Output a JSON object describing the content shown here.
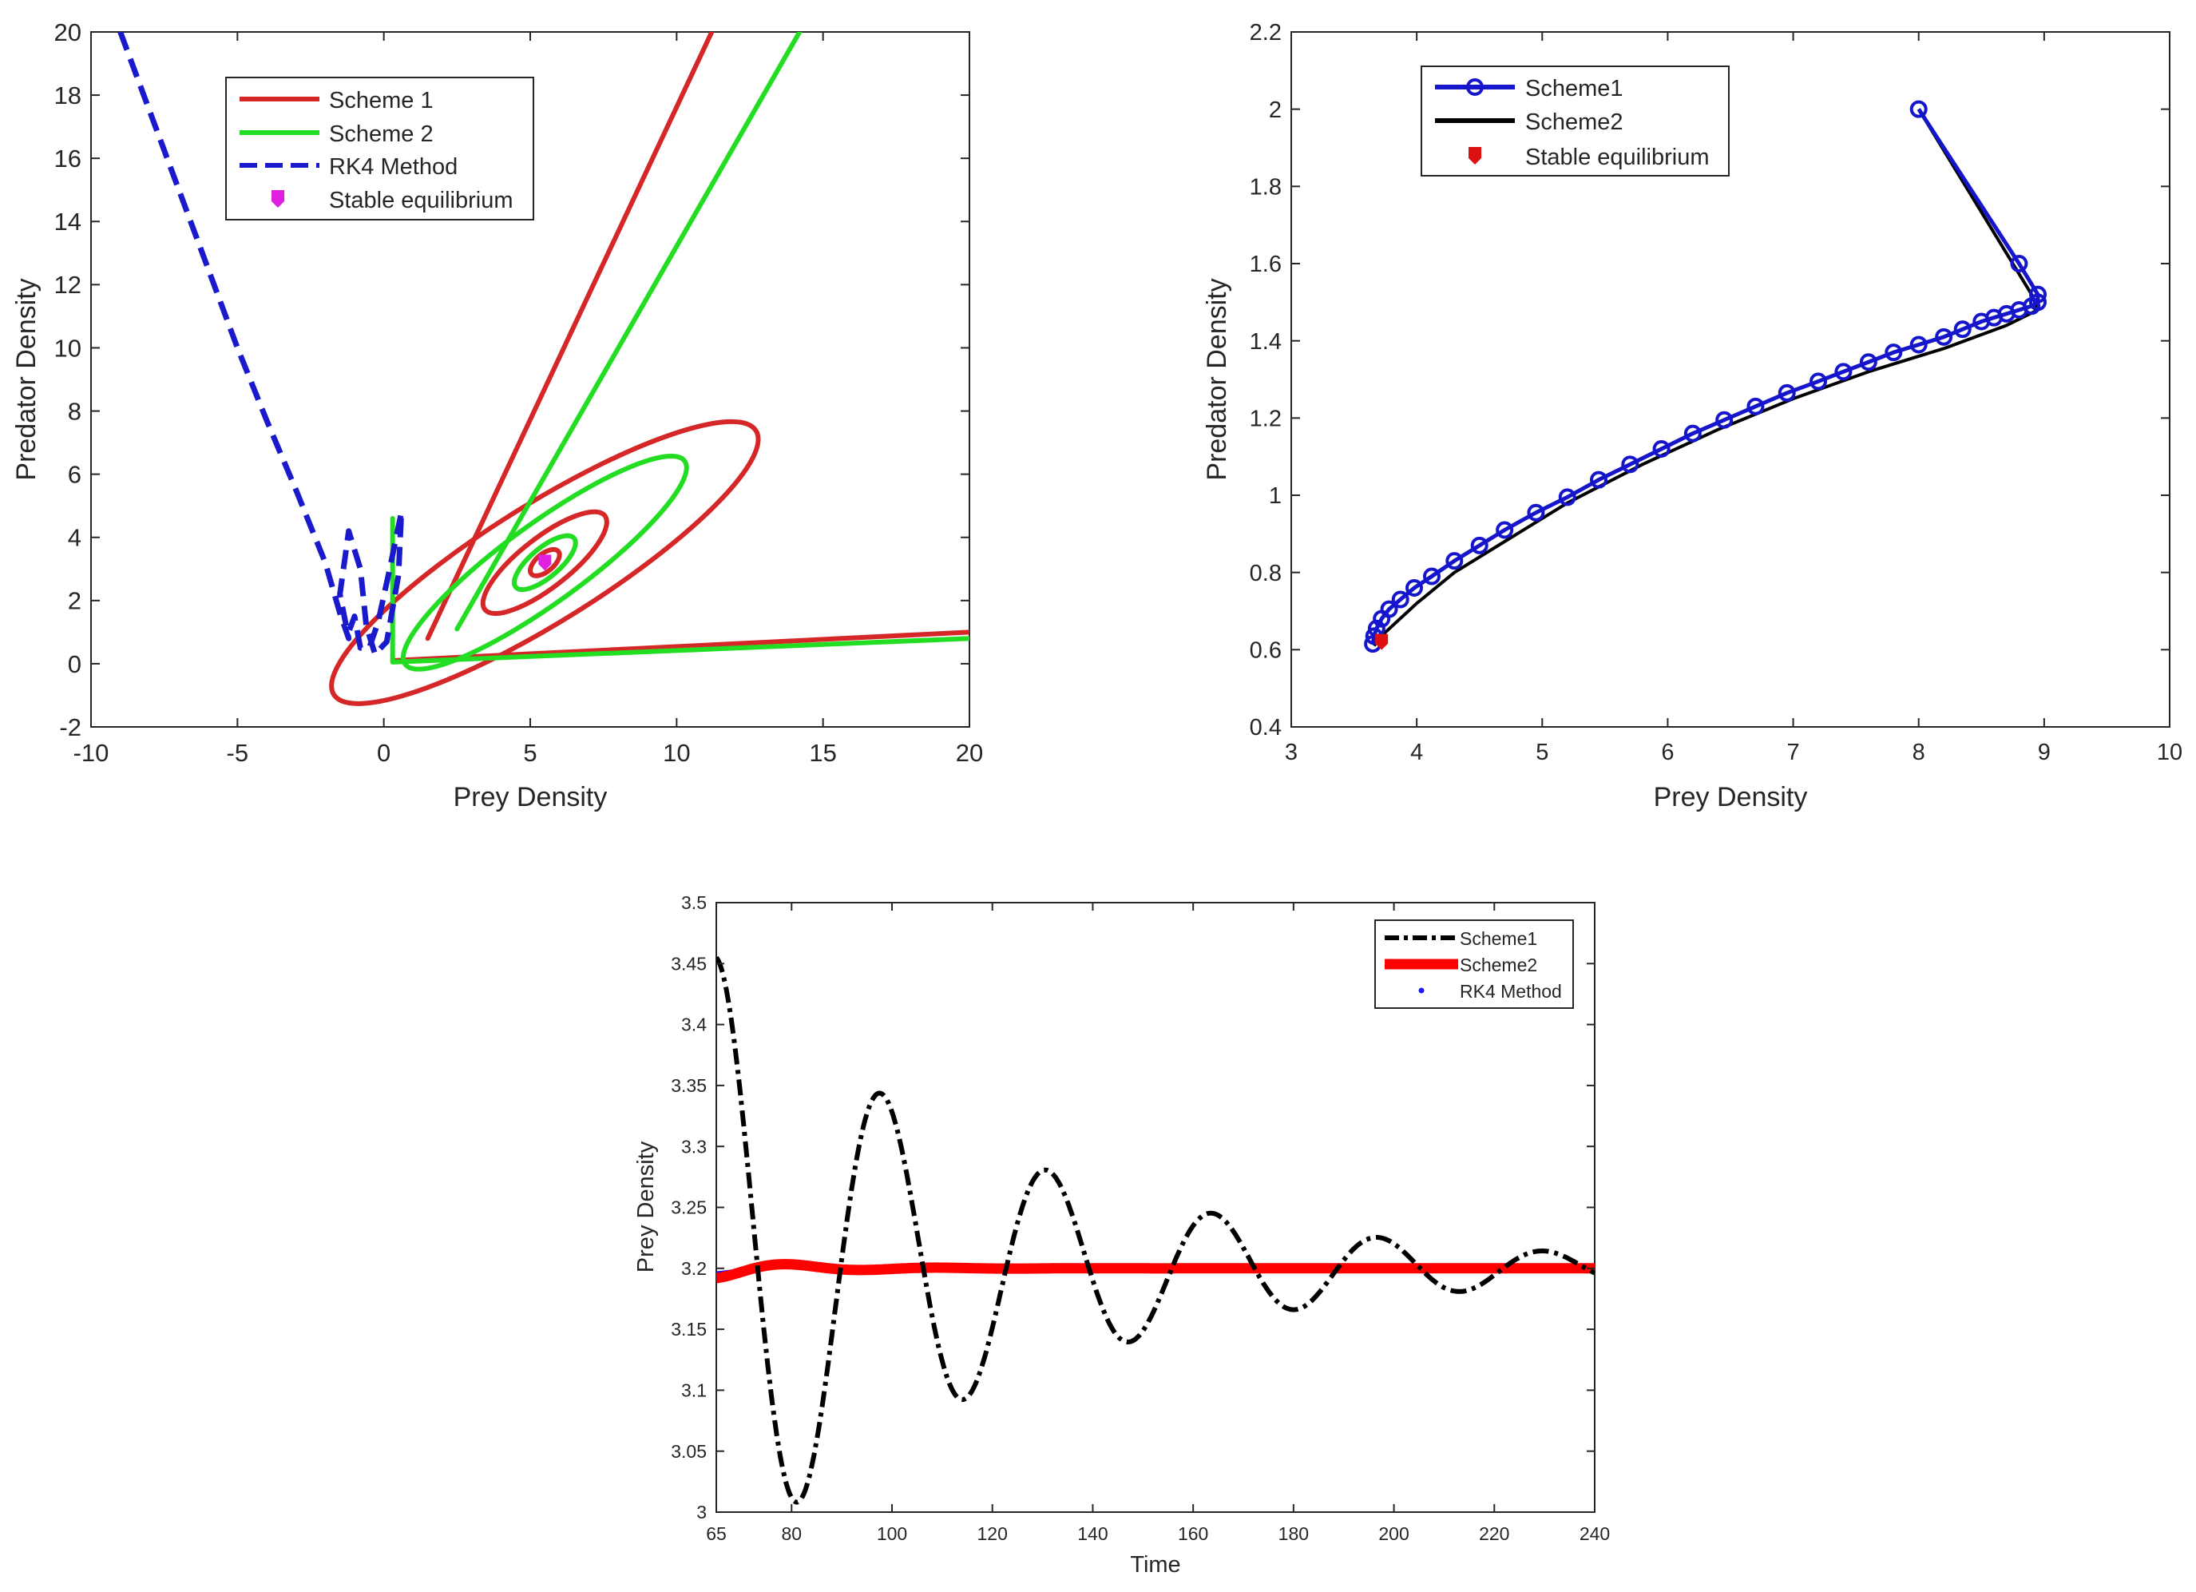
{
  "chart_data": [
    {
      "type": "line",
      "id": "phase-portrait-1",
      "xlabel": "Prey Density",
      "ylabel": "Predator Density",
      "xlim": [
        -10,
        20
      ],
      "ylim": [
        -2,
        20
      ],
      "xticks": [
        -10,
        -5,
        0,
        5,
        10,
        15,
        20
      ],
      "yticks": [
        -2,
        0,
        2,
        4,
        6,
        8,
        10,
        12,
        14,
        16,
        18,
        20
      ],
      "legend_position": "top-left",
      "equilibrium": {
        "x": 5.5,
        "y": 3.2
      },
      "series": [
        {
          "name": "Scheme 1",
          "color": "#d62728",
          "style": "solid",
          "segments": [
            {
              "kind": "ray",
              "x": [
                1.5,
                11.2
              ],
              "y": [
                0.8,
                20
              ]
            },
            {
              "kind": "ray",
              "x": [
                0.3,
                20
              ],
              "y": [
                0.1,
                1.0
              ]
            },
            {
              "kind": "ellipse",
              "rx": 8.5,
              "ry": 2.0,
              "angle": 32
            },
            {
              "kind": "ellipse",
              "rx": 2.6,
              "ry": 0.85,
              "angle": 38
            },
            {
              "kind": "ellipse",
              "rx": 0.6,
              "ry": 0.3,
              "angle": 40
            }
          ]
        },
        {
          "name": "Scheme 2",
          "color": "#22dd22",
          "style": "solid",
          "segments": [
            {
              "kind": "ray",
              "x": [
                2.5,
                14.2
              ],
              "y": [
                1.1,
                20
              ]
            },
            {
              "kind": "ray",
              "x": [
                0.3,
                20
              ],
              "y": [
                0.05,
                0.8
              ]
            },
            {
              "kind": "ellipse",
              "rx": 5.9,
              "ry": 1.35,
              "angle": 36
            },
            {
              "kind": "ellipse",
              "rx": 1.3,
              "ry": 0.5,
              "angle": 40
            },
            {
              "kind": "vertical",
              "x": [
                0.3,
                0.3
              ],
              "y": [
                0.1,
                4.6
              ]
            }
          ]
        },
        {
          "name": "RK4 Method",
          "color": "#1a1acc",
          "style": "dashed",
          "x": [
            -9,
            -8,
            -7,
            -6,
            -5,
            -4,
            -3,
            -2,
            -1.5,
            -1.2,
            -1.5,
            -1.2,
            -0.8,
            -0.6,
            -0.3,
            0.1,
            0.5,
            0.6,
            0.2,
            -0.2,
            -0.5,
            -0.8,
            -1.0,
            -1.2
          ],
          "y": [
            20,
            17.5,
            15,
            12.5,
            10,
            7.7,
            5.5,
            3.2,
            1.6,
            0.8,
            2.2,
            4.2,
            3.0,
            1.2,
            0.3,
            0.7,
            2.8,
            4.8,
            3.0,
            1.3,
            0.5,
            0.5,
            1.5,
            1.0
          ]
        }
      ],
      "legend": [
        "Scheme 1",
        "Scheme 2",
        "RK4 Method",
        "Stable equilibrium"
      ]
    },
    {
      "type": "line",
      "id": "phase-portrait-2",
      "xlabel": "Prey Density",
      "ylabel": "Predator Density",
      "xlim": [
        3,
        10
      ],
      "ylim": [
        0.4,
        2.2
      ],
      "xticks": [
        3,
        4,
        5,
        6,
        7,
        8,
        9,
        10
      ],
      "yticks": [
        0.4,
        0.6,
        0.8,
        1,
        1.2,
        1.4,
        1.6,
        1.8,
        2,
        2.2
      ],
      "legend_position": "top-left",
      "equilibrium": {
        "x": 3.72,
        "y": 0.62
      },
      "series": [
        {
          "name": "Scheme1",
          "color": "#1515cc",
          "marker": "circle",
          "x": [
            8.0,
            8.8,
            8.95,
            8.95,
            8.9,
            8.8,
            8.7,
            8.6,
            8.5,
            8.35,
            8.2,
            8.0,
            7.8,
            7.6,
            7.4,
            7.2,
            6.95,
            6.7,
            6.45,
            6.2,
            5.95,
            5.7,
            5.45,
            5.2,
            4.95,
            4.7,
            4.5,
            4.3,
            4.12,
            3.98,
            3.87,
            3.78,
            3.72,
            3.68,
            3.66,
            3.65
          ],
          "y": [
            2.0,
            1.6,
            1.52,
            1.5,
            1.49,
            1.48,
            1.47,
            1.46,
            1.45,
            1.43,
            1.41,
            1.39,
            1.37,
            1.345,
            1.32,
            1.295,
            1.265,
            1.23,
            1.195,
            1.16,
            1.12,
            1.08,
            1.04,
            0.995,
            0.955,
            0.91,
            0.87,
            0.83,
            0.79,
            0.76,
            0.73,
            0.705,
            0.68,
            0.655,
            0.635,
            0.615
          ]
        },
        {
          "name": "Scheme2",
          "color": "#000000",
          "marker": "none",
          "x": [
            8.0,
            8.9,
            8.95,
            8.7,
            8.2,
            7.6,
            7.0,
            6.4,
            5.8,
            5.2,
            4.7,
            4.3,
            4.0,
            3.8,
            3.7,
            3.66
          ],
          "y": [
            2.0,
            1.52,
            1.48,
            1.44,
            1.38,
            1.32,
            1.25,
            1.17,
            1.08,
            0.98,
            0.88,
            0.8,
            0.72,
            0.66,
            0.63,
            0.61
          ]
        }
      ],
      "legend": [
        "Scheme1",
        "Scheme2",
        "Stable equilibrium"
      ]
    },
    {
      "type": "line",
      "id": "prey-time-series",
      "xlabel": "Time",
      "ylabel": "Prey Density",
      "xlim": [
        65,
        240
      ],
      "ylim": [
        3,
        3.5
      ],
      "xticks": [
        65,
        80,
        100,
        120,
        140,
        160,
        180,
        200,
        220,
        240
      ],
      "yticks": [
        3,
        3.05,
        3.1,
        3.15,
        3.2,
        3.25,
        3.3,
        3.35,
        3.4,
        3.45,
        3.5
      ],
      "legend_position": "top-right",
      "equilibrium_value": 3.2,
      "series": [
        {
          "name": "Scheme1",
          "color": "#000000",
          "style": "dash-dot",
          "model": {
            "amplitude": -0.255,
            "decay": 0.0175,
            "period": 33,
            "phase_start": 65
          }
        },
        {
          "name": "Scheme2",
          "color": "#ff0000",
          "style": "thick",
          "model": {
            "amplitude": 0.008,
            "decay": 0.06,
            "period": 30,
            "phase_start": 65
          }
        },
        {
          "name": "RK4 Method",
          "color": "#1a1aff",
          "style": "dotted",
          "model": {
            "amplitude": 0.004,
            "decay": 0.07,
            "period": 30,
            "phase_start": 65
          }
        }
      ],
      "legend": [
        "Scheme1",
        "Scheme2",
        "RK4 Method"
      ]
    }
  ]
}
